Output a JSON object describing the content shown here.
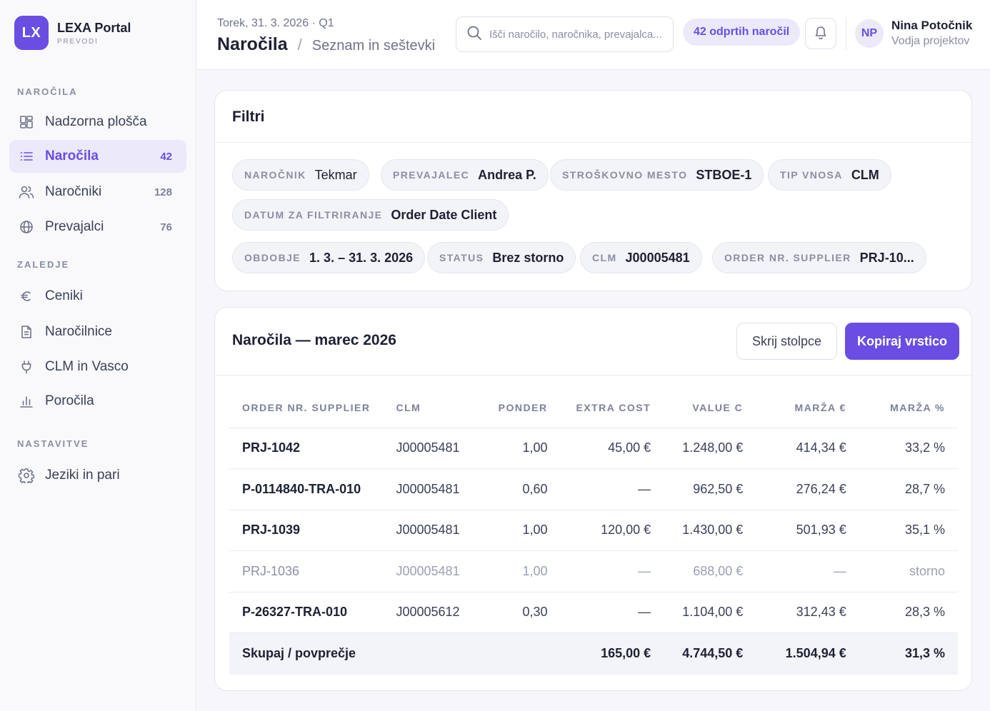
{
  "app": {
    "logo_text": "LX",
    "name": "LEXA Portal",
    "subtitle": "PREVODI"
  },
  "sidebar": {
    "sections": [
      {
        "label": "NAROČILA"
      },
      {
        "label": "ZALEDJE"
      },
      {
        "label": "NASTAVITVE"
      }
    ],
    "items": [
      {
        "label": "Nadzorna plošča",
        "icon": "dashboard-icon"
      },
      {
        "label": "Naročila",
        "count": "42",
        "icon": "list-icon",
        "active": true
      },
      {
        "label": "Naročniki",
        "count": "128",
        "icon": "users-icon"
      },
      {
        "label": "Prevajalci",
        "count": "76",
        "icon": "globe-icon"
      },
      {
        "label": "Ceniki",
        "icon": "euro-icon"
      },
      {
        "label": "Naročilnice",
        "icon": "document-icon"
      },
      {
        "label": "CLM in Vasco",
        "icon": "plug-icon"
      },
      {
        "label": "Poročila",
        "icon": "bar-chart-icon"
      },
      {
        "label": "Jeziki in pari",
        "icon": "gear-icon"
      }
    ]
  },
  "header": {
    "date_line": "Torek, 31. 3. 2026 · Q1",
    "title": "Naročila",
    "separator": "/",
    "subtitle": "Seznam in seštevki",
    "search_placeholder": "Išči naročilo, naročnika, prevajalca...",
    "open_orders": "42 odprtih naročil",
    "user": {
      "initials": "NP",
      "name": "Nina Potočnik",
      "role": "Vodja projektov"
    }
  },
  "filters": {
    "title": "Filtri",
    "chips": [
      {
        "key": "NAROČNIK",
        "value": "Tekmar"
      },
      {
        "key": "PREVAJALEC",
        "value": "Andrea P."
      },
      {
        "key": "STROŠKOVNO MESTO",
        "value": "STBOE-1"
      },
      {
        "key": "TIP VNOSA",
        "value": "CLM"
      },
      {
        "key": "DATUM ZA FILTRIRANJE",
        "value": "Order Date Client"
      },
      {
        "key": "OBDOBJE",
        "value": "1. 3. – 31. 3. 2026"
      },
      {
        "key": "STATUS",
        "value": "Brez storno"
      },
      {
        "key": "CLM",
        "value": "J00005481"
      },
      {
        "key": "ORDER NR. SUPPLIER",
        "value": "PRJ-10..."
      }
    ]
  },
  "orders": {
    "title": "Naročila — marec 2026",
    "hide_columns_label": "Skrij stolpce",
    "copy_row_label": "Kopiraj vrstico",
    "columns": [
      "ORDER NR. SUPPLIER",
      "CLM",
      "PONDER",
      "EXTRA COST",
      "VALUE C",
      "MARŽA €",
      "MARŽA %"
    ],
    "rows": [
      {
        "order": "PRJ-1042",
        "clm": "J00005481",
        "ponder": "1,00",
        "extra": "45,00 €",
        "value": "1.248,00 €",
        "marza_eur": "414,34 €",
        "marza_pct": "33,2 %"
      },
      {
        "order": "P-0114840-TRA-010",
        "clm": "J00005481",
        "ponder": "0,60",
        "extra": "—",
        "value": "962,50 €",
        "marza_eur": "276,24 €",
        "marza_pct": "28,7 %"
      },
      {
        "order": "PRJ-1039",
        "clm": "J00005481",
        "ponder": "1,00",
        "extra": "120,00 €",
        "value": "1.430,00 €",
        "marza_eur": "501,93 €",
        "marza_pct": "35,1 %"
      },
      {
        "order": "PRJ-1036",
        "clm": "J00005481",
        "ponder": "1,00",
        "extra": "—",
        "value": "688,00 €",
        "marza_eur": "—",
        "marza_pct": "storno",
        "muted": true
      },
      {
        "order": "P-26327-TRA-010",
        "clm": "J00005612",
        "ponder": "0,30",
        "extra": "—",
        "value": "1.104,00 €",
        "marza_eur": "312,43 €",
        "marza_pct": "28,3 %"
      }
    ],
    "total": {
      "label": "Skupaj / povprečje",
      "extra": "165,00 €",
      "value": "4.744,50 €",
      "marza_eur": "1.504,94 €",
      "marza_pct": "31,3 %"
    }
  },
  "colors": {
    "accent": "#6a4de3",
    "accent_soft": "#ece9fb",
    "text": "#1d2133",
    "muted": "#8a8ea3"
  }
}
